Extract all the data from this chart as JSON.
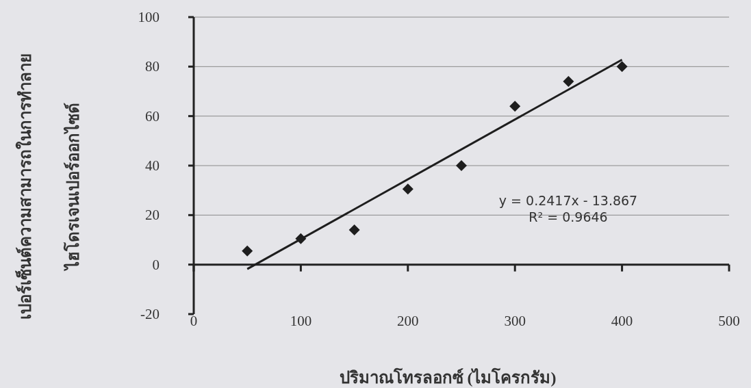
{
  "chart_data": {
    "type": "scatter",
    "xlabel": "ปริมาณโทรลอกซ์ (ไมโครกรัม)",
    "ylabel": "เปอร์เซ็นต์ความสามารถในการทำลาย ไฮโดรเจนเปอร์ออกไซด์",
    "series": [
      {
        "type": "scatter",
        "color": "#1e1e1e",
        "marker": "diamond",
        "x": [
          50,
          100,
          150,
          200,
          250,
          300,
          350,
          400
        ],
        "values": [
          5.5,
          10.5,
          14,
          30.5,
          40,
          64,
          74,
          80
        ]
      },
      {
        "type": "line",
        "color": "#1e1e1e",
        "marker": "none",
        "line_style": "solid",
        "x": [
          50,
          400
        ],
        "values": [
          -1.8,
          82.8
        ]
      }
    ],
    "annotations": [
      "y = 0.2417x - 13.867",
      "R² = 0.9646"
    ],
    "xlim": [
      0,
      500
    ],
    "ylim": [
      -20,
      100
    ],
    "xticks": [
      0,
      100,
      200,
      300,
      400,
      500
    ],
    "yticks": [
      -20,
      0,
      20,
      40,
      60,
      80,
      100
    ],
    "grid": "y"
  }
}
